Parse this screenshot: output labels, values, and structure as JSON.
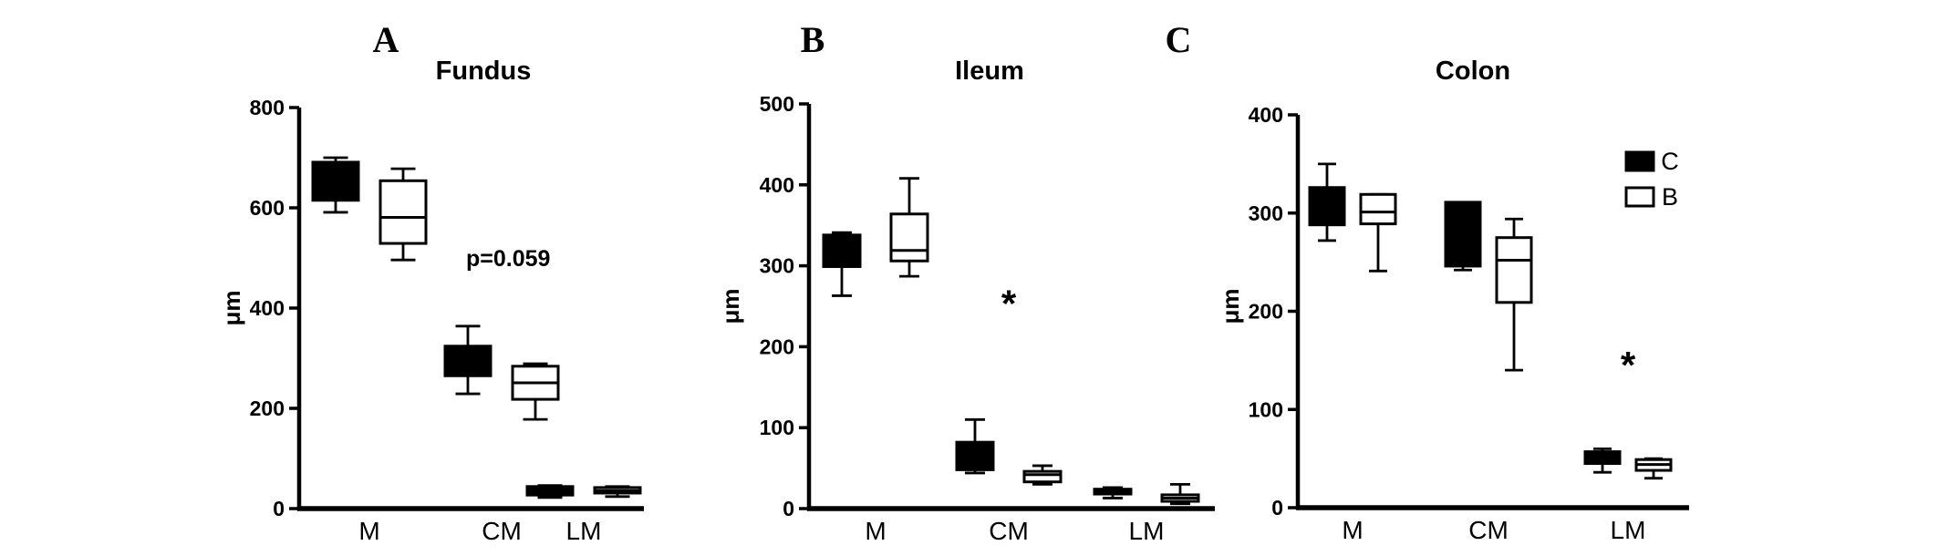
{
  "figure": {
    "background": "#ffffff",
    "ink": "#000000"
  },
  "chart_data": [
    {
      "panel": "A",
      "type": "boxplot",
      "title": "Fundus",
      "ylabel": "μm",
      "ylim": [
        0,
        800
      ],
      "yticks": [
        0,
        200,
        400,
        600,
        800
      ],
      "categories": [
        "M",
        "CM",
        "LM"
      ],
      "series": [
        {
          "name": "C",
          "fill": "#000000",
          "boxes": [
            {
              "whislo": 591,
              "q1": 615,
              "med": 655,
              "q3": 691,
              "whishi": 700
            },
            {
              "whislo": 229,
              "q1": 265,
              "med": 296,
              "q3": 324,
              "whishi": 364
            },
            {
              "whislo": 22,
              "q1": 27,
              "med": 35,
              "q3": 44,
              "whishi": 46
            }
          ]
        },
        {
          "name": "B",
          "fill": "#ffffff",
          "boxes": [
            {
              "whislo": 496,
              "q1": 529,
              "med": 581,
              "q3": 654,
              "whishi": 678
            },
            {
              "whislo": 178,
              "q1": 218,
              "med": 251,
              "q3": 284,
              "whishi": 289
            },
            {
              "whislo": 24,
              "q1": 31,
              "med": 36,
              "q3": 42,
              "whishi": 44
            }
          ]
        }
      ],
      "annotations": [
        {
          "text": "p=0.059",
          "x": 1.08,
          "y": 500,
          "style": "pvalue"
        }
      ],
      "legend": null
    },
    {
      "panel": "B",
      "type": "boxplot",
      "title": "Ileum",
      "ylabel": "μm",
      "ylim": [
        0,
        500
      ],
      "yticks": [
        0,
        100,
        200,
        300,
        400,
        500
      ],
      "categories": [
        "M",
        "CM",
        "LM"
      ],
      "series": [
        {
          "name": "C",
          "fill": "#000000",
          "boxes": [
            {
              "whislo": 263,
              "q1": 299,
              "med": 320,
              "q3": 338,
              "whishi": 341
            },
            {
              "whislo": 44,
              "q1": 48,
              "med": 60,
              "q3": 82,
              "whishi": 110
            },
            {
              "whislo": 13,
              "q1": 18,
              "med": 21,
              "q3": 24,
              "whishi": 26
            }
          ]
        },
        {
          "name": "B",
          "fill": "#ffffff",
          "boxes": [
            {
              "whislo": 287,
              "q1": 306,
              "med": 319,
              "q3": 364,
              "whishi": 408
            },
            {
              "whislo": 30,
              "q1": 33,
              "med": 42,
              "q3": 46,
              "whishi": 53
            },
            {
              "whislo": 6,
              "q1": 9,
              "med": 13,
              "q3": 17,
              "whishi": 30
            }
          ]
        }
      ],
      "annotations": [
        {
          "text": "*",
          "x": 1.0,
          "y": 253,
          "style": "star"
        }
      ],
      "legend": null
    },
    {
      "panel": "C",
      "type": "boxplot",
      "title": "Colon",
      "ylabel": "μm",
      "ylim": [
        0,
        400
      ],
      "yticks": [
        0,
        100,
        200,
        300,
        400
      ],
      "categories": [
        "M",
        "CM",
        "LM"
      ],
      "series": [
        {
          "name": "C",
          "fill": "#000000",
          "boxes": [
            {
              "whislo": 272,
              "q1": 288,
              "med": 305,
              "q3": 326,
              "whishi": 350
            },
            {
              "whislo": 242,
              "q1": 246,
              "med": 285,
              "q3": 311,
              "whishi": 311
            },
            {
              "whislo": 36,
              "q1": 45,
              "med": 51,
              "q3": 57,
              "whishi": 60
            }
          ]
        },
        {
          "name": "B",
          "fill": "#ffffff",
          "boxes": [
            {
              "whislo": 241,
              "q1": 289,
              "med": 301,
              "q3": 319,
              "whishi": 319
            },
            {
              "whislo": 140,
              "q1": 209,
              "med": 252,
              "q3": 275,
              "whishi": 294
            },
            {
              "whislo": 30,
              "q1": 38,
              "med": 44,
              "q3": 49,
              "whishi": 50
            }
          ]
        }
      ],
      "annotations": [
        {
          "text": "*",
          "x": 2.0,
          "y": 145,
          "style": "star"
        }
      ],
      "legend": {
        "entries": [
          {
            "label": "C",
            "fill": "#000000"
          },
          {
            "label": "B",
            "fill": "#ffffff"
          }
        ]
      }
    }
  ]
}
